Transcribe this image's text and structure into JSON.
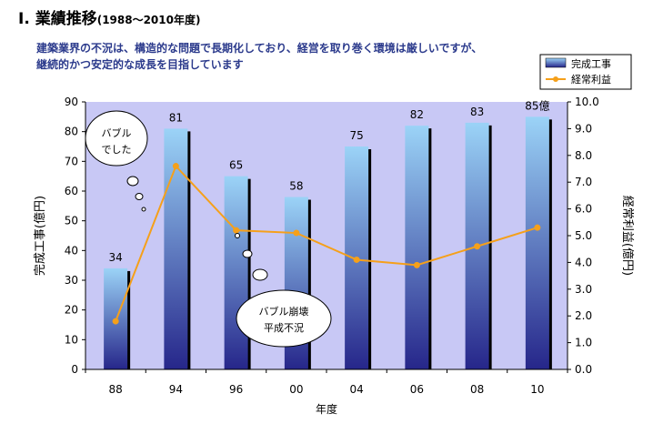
{
  "header": {
    "title": "Ⅰ. 業績推移",
    "title_range": "(1988～2010年度)",
    "subtitle_line1": "建築業界の不況は、構造的な問題で長期化しており、経営を取り巻く環境は厳しいですが、",
    "subtitle_line2": "継続的かつ安定的な成長を目指しています"
  },
  "chart_data": {
    "type": "bar+line",
    "categories": [
      "88",
      "94",
      "96",
      "00",
      "04",
      "06",
      "08",
      "10"
    ],
    "series": [
      {
        "name": "完成工事",
        "type": "bar",
        "axis": "left",
        "values": [
          34,
          81,
          65,
          58,
          75,
          82,
          83,
          85
        ],
        "data_labels": [
          "34",
          "81",
          "65",
          "58",
          "75",
          "82",
          "83",
          "85億"
        ]
      },
      {
        "name": "経常利益",
        "type": "line",
        "axis": "right",
        "values": [
          1.8,
          7.6,
          5.2,
          5.1,
          4.1,
          3.9,
          4.6,
          5.3
        ]
      }
    ],
    "xlabel": "年度",
    "ylabel_left": "完成工事(億円)",
    "ylabel_right": "経常利益(億円)",
    "ylim_left": [
      0,
      90
    ],
    "ylim_right": [
      0,
      10
    ],
    "yticks_left": [
      "0",
      "10",
      "20",
      "30",
      "40",
      "50",
      "60",
      "70",
      "80",
      "90"
    ],
    "yticks_right": [
      "0.0",
      "1.0",
      "2.0",
      "3.0",
      "4.0",
      "5.0",
      "6.0",
      "7.0",
      "8.0",
      "9.0",
      "10.0"
    ],
    "legend_position": "top-right",
    "annotations": [
      "バブル\nでした",
      "バブル崩壊\n平成不況"
    ],
    "colors": {
      "plot_bg": "#c8c8f5",
      "bar_top": "#9bd3f7",
      "bar_bottom": "#26268a",
      "line": "#f5a01a",
      "shadow": "#000000"
    }
  }
}
